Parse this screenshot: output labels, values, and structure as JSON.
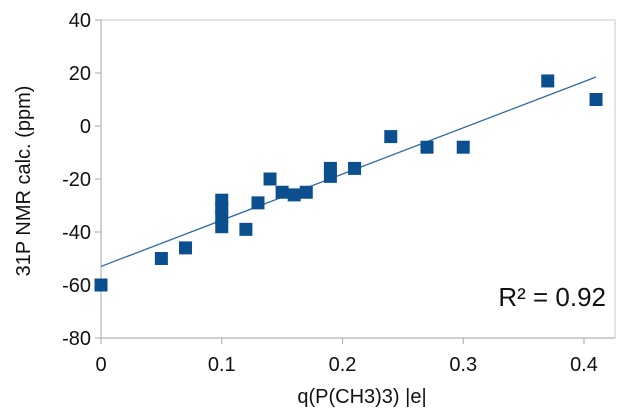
{
  "chart_data": {
    "type": "scatter",
    "title": "",
    "xlabel": "q(P(CH3)3) |e|",
    "ylabel": "31P NMR calc. (ppm)",
    "xlim": [
      0,
      0.4257
    ],
    "ylim": [
      -80,
      40
    ],
    "grid": false,
    "legend": "none",
    "x_ticks": [
      "0",
      "0.1",
      "0.2",
      "0.3",
      "0.4"
    ],
    "x_tick_values": [
      0,
      0.1,
      0.2,
      0.3,
      0.4
    ],
    "y_ticks": [
      "40",
      "20",
      "0",
      "-20",
      "-40",
      "-60",
      "-80"
    ],
    "y_tick_values": [
      40,
      20,
      0,
      -20,
      -40,
      -60,
      -80
    ],
    "series": [
      {
        "name": "",
        "color": "#0b4f8f",
        "marker": "square",
        "points": [
          {
            "x": 0.0,
            "y": -60
          },
          {
            "x": 0.05,
            "y": -50
          },
          {
            "x": 0.07,
            "y": -46
          },
          {
            "x": 0.1,
            "y": -28
          },
          {
            "x": 0.1,
            "y": -31
          },
          {
            "x": 0.1,
            "y": -34
          },
          {
            "x": 0.1,
            "y": -38
          },
          {
            "x": 0.12,
            "y": -39
          },
          {
            "x": 0.13,
            "y": -29
          },
          {
            "x": 0.14,
            "y": -20
          },
          {
            "x": 0.15,
            "y": -25
          },
          {
            "x": 0.16,
            "y": -26
          },
          {
            "x": 0.17,
            "y": -25
          },
          {
            "x": 0.19,
            "y": -16
          },
          {
            "x": 0.19,
            "y": -19
          },
          {
            "x": 0.21,
            "y": -16
          },
          {
            "x": 0.24,
            "y": -4
          },
          {
            "x": 0.27,
            "y": -8
          },
          {
            "x": 0.3,
            "y": -8
          },
          {
            "x": 0.37,
            "y": 17
          },
          {
            "x": 0.41,
            "y": 10
          }
        ]
      }
    ],
    "trendline": {
      "type": "linear",
      "color": "#2f6aa3",
      "x_start": 0.0,
      "x_end": 0.41,
      "y_start": -53,
      "y_end": 18.5
    },
    "annotation": {
      "text": "R² = 0.92"
    }
  }
}
